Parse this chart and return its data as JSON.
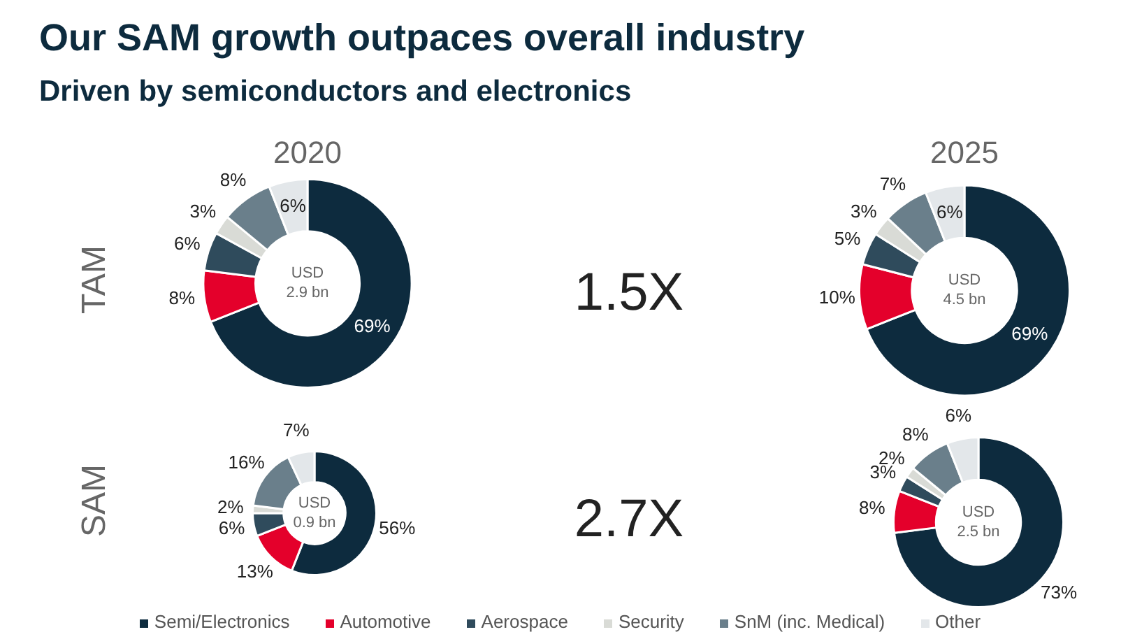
{
  "chart_data": [
    {
      "type": "other",
      "title": "Our SAM growth outpaces overall industry",
      "subtitle": "Driven by semiconductors and electronics",
      "annotations": [
        "TAM",
        "SAM",
        "1.5X",
        "2.7X"
      ]
    },
    {
      "type": "donut",
      "title": "2020",
      "categories": [
        null,
        null,
        null,
        null,
        null,
        null
      ],
      "values": [
        69,
        8,
        6,
        3,
        8,
        6
      ],
      "value_labels": [
        "69%",
        "8%",
        "6%",
        "3%",
        "8%",
        "6%"
      ],
      "colors": [
        "#0d2b3e",
        "#e4002b",
        "#2f4b5c",
        "#d9dbd6",
        "#6a7f8b",
        "#e3e7ea"
      ],
      "annotations": [
        "USD 2.9 bn"
      ]
    },
    {
      "type": "donut",
      "title": "2025",
      "categories": [
        null,
        null,
        null,
        null,
        null,
        null
      ],
      "values": [
        69,
        10,
        5,
        3,
        7,
        6
      ],
      "value_labels": [
        "69%",
        "10%",
        "5%",
        "3%",
        "7%",
        "6%"
      ],
      "colors": [
        "#0d2b3e",
        "#e4002b",
        "#2f4b5c",
        "#d9dbd6",
        "#6a7f8b",
        "#e3e7ea"
      ],
      "annotations": [
        "USD 4.5 bn"
      ]
    },
    {
      "type": "donut",
      "categories": [
        null,
        null,
        null,
        null,
        null,
        null
      ],
      "values": [
        56,
        13,
        6,
        2,
        16,
        7
      ],
      "value_labels": [
        "56%",
        "13%",
        "6%",
        "2%",
        "16%",
        "7%"
      ],
      "colors": [
        "#0d2b3e",
        "#e4002b",
        "#2f4b5c",
        "#d9dbd6",
        "#6a7f8b",
        "#e3e7ea"
      ],
      "annotations": [
        "USD 0.9 bn"
      ]
    },
    {
      "type": "donut",
      "categories": [
        "Semi/Electronics",
        "Automotive",
        "Aerospace",
        "Security",
        "SnM (inc. Medical)",
        "Other"
      ],
      "values": [
        73,
        8,
        3,
        2,
        8,
        6
      ],
      "value_labels": [
        "73%",
        "8%",
        "3%",
        "2%",
        "8%",
        "6%"
      ],
      "colors": [
        "#0d2b3e",
        "#e4002b",
        "#2f4b5c",
        "#d9dbd6",
        "#6a7f8b",
        "#e3e7ea"
      ],
      "annotations": [
        "USD 2.5 bn"
      ],
      "legend": "bottom"
    }
  ]
}
